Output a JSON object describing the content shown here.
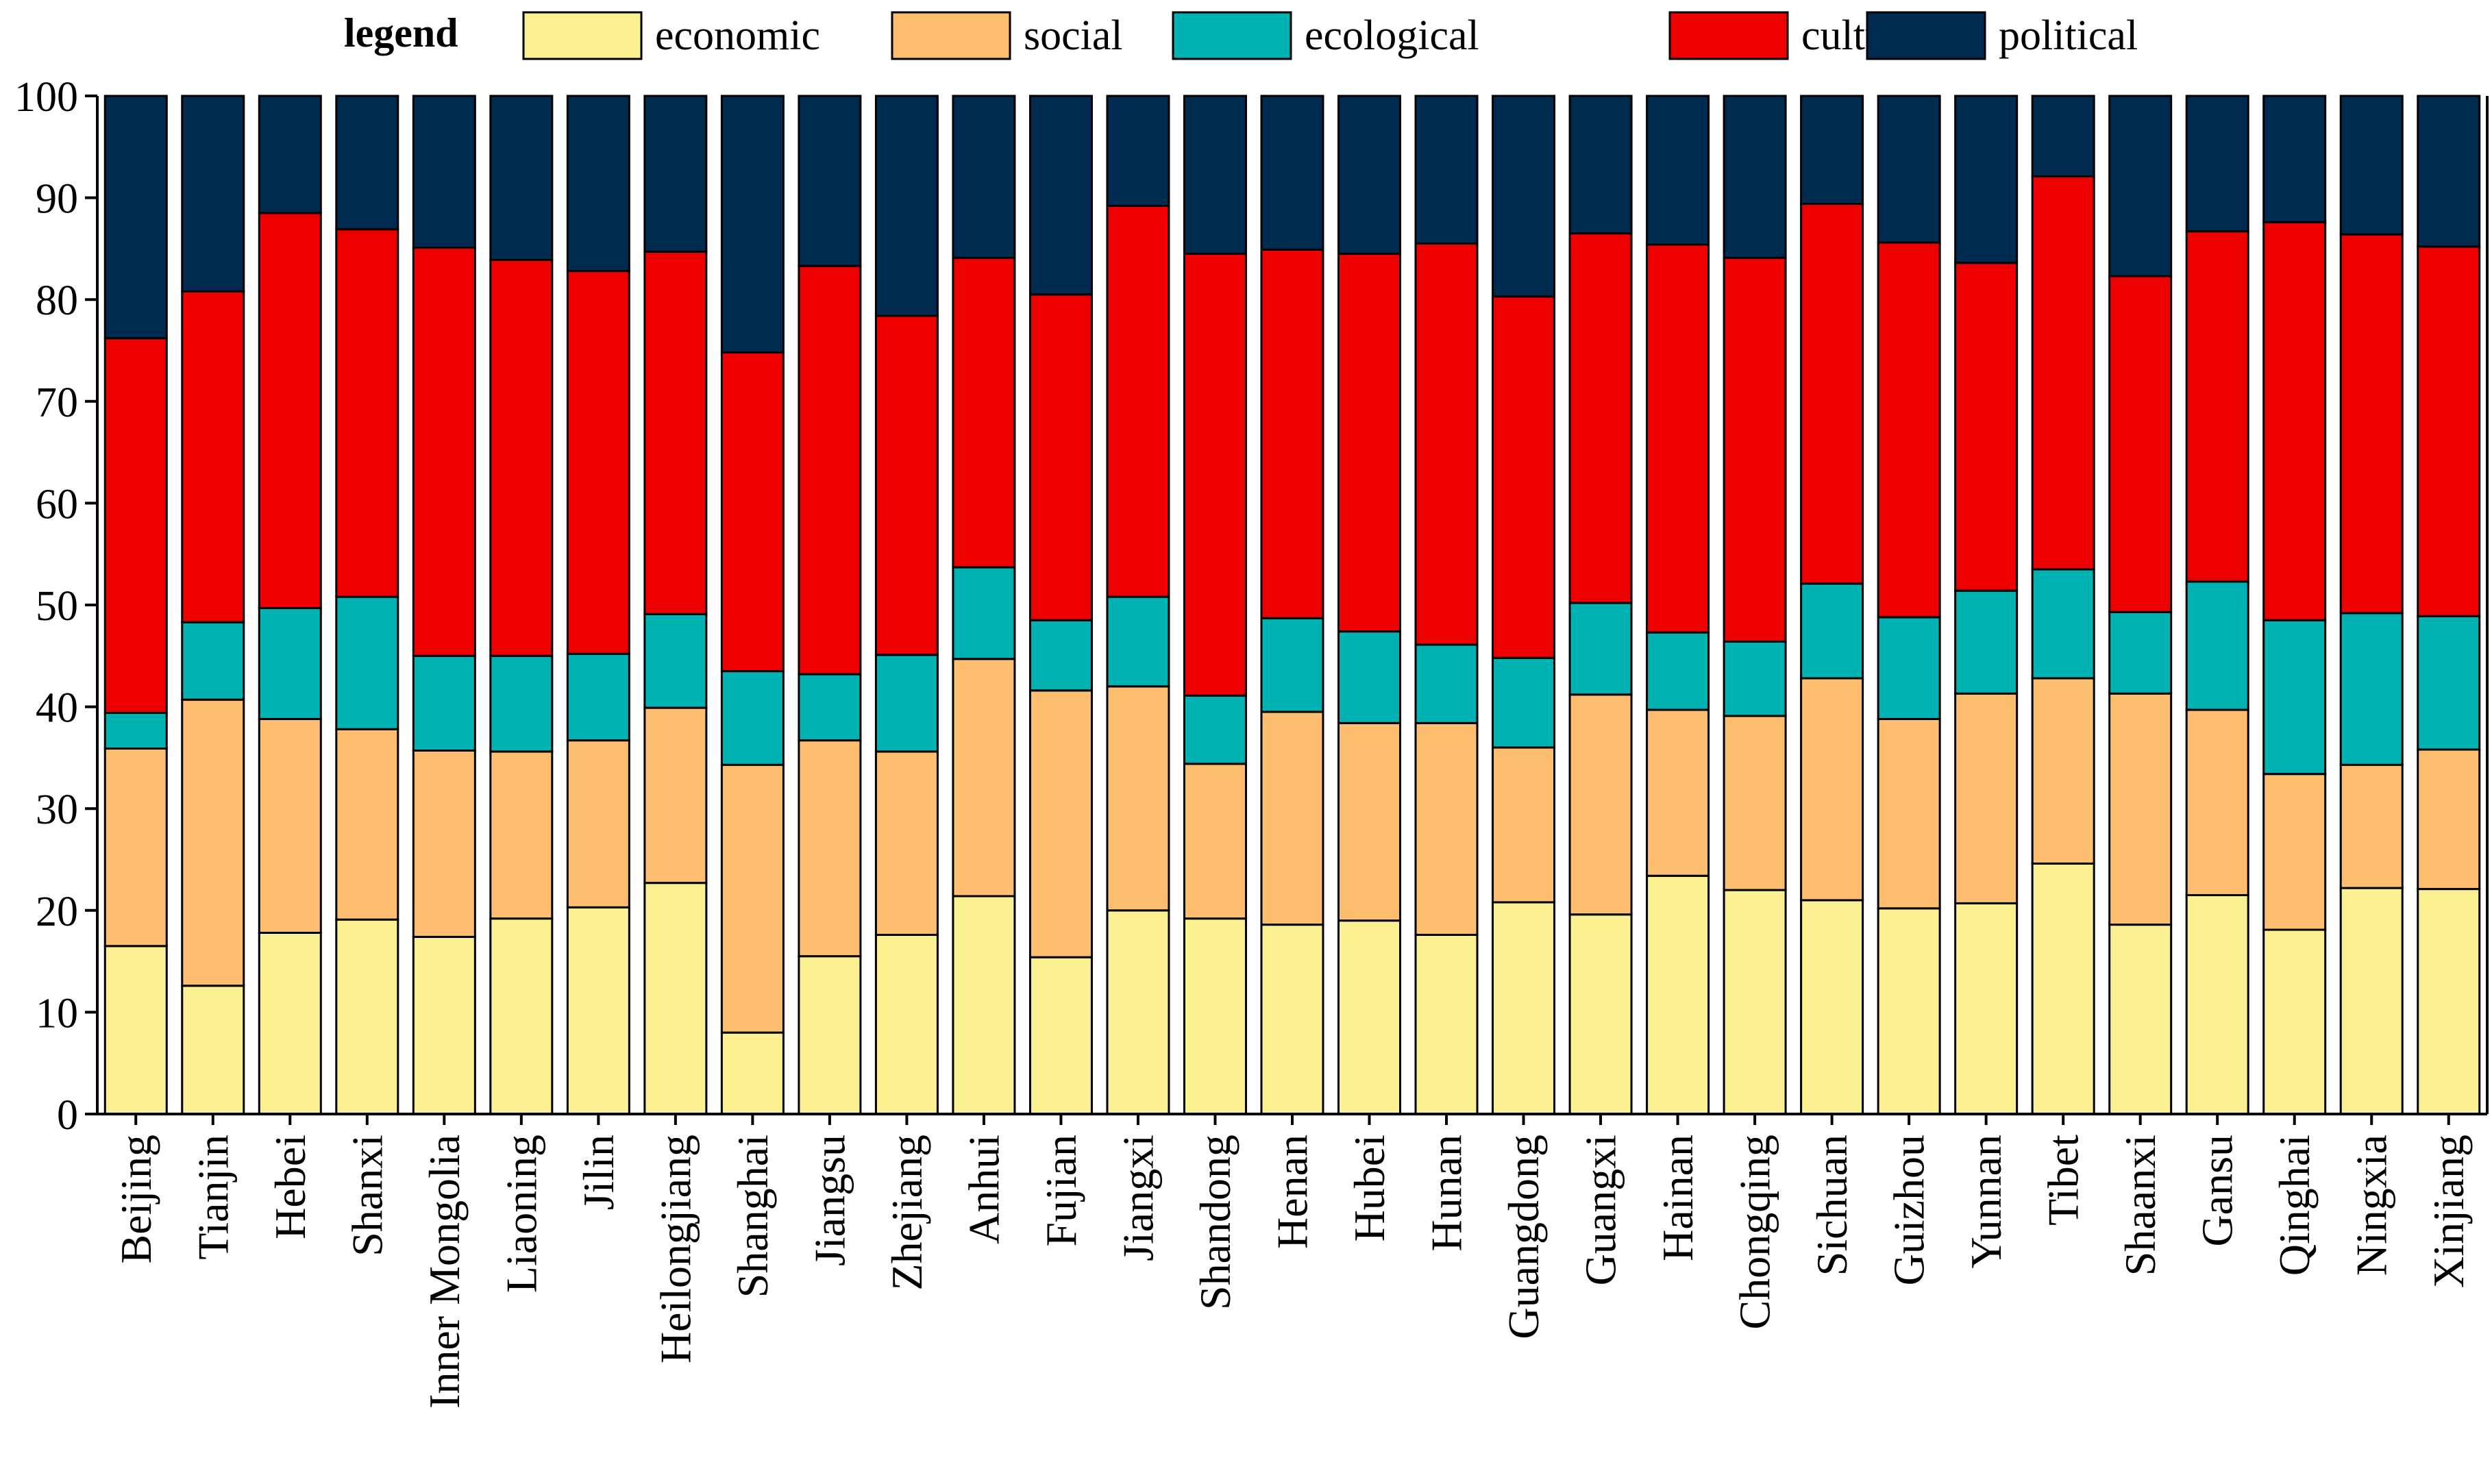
{
  "chart_data": {
    "type": "bar",
    "stacked": true,
    "title": "",
    "xlabel": "",
    "ylabel": "",
    "ylim": [
      0,
      100
    ],
    "yticks": [
      0,
      10,
      20,
      30,
      40,
      50,
      60,
      70,
      80,
      90,
      100
    ],
    "legend_title": "legend",
    "legend_position": "top",
    "categories": [
      "Beijing",
      "Tianjin",
      "Hebei",
      "Shanxi",
      "Inner Mongolia",
      "Liaoning",
      "Jilin",
      "Heilongjiang",
      "Shanghai",
      "Jiangsu",
      "Zhejiang",
      "Anhui",
      "Fujian",
      "Jiangxi",
      "Shandong",
      "Henan",
      "Hubei",
      "Hunan",
      "Guangdong",
      "Guangxi",
      "Hainan",
      "Chongqing",
      "Sichuan",
      "Guizhou",
      "Yunnan",
      "Tibet",
      "Shaanxi",
      "Gansu",
      "Qinghai",
      "Ningxia",
      "Xinjiang"
    ],
    "series": [
      {
        "name": "economic",
        "color": "#FBF193",
        "values": [
          16.5,
          12.6,
          17.8,
          19.1,
          17.4,
          19.2,
          20.3,
          22.7,
          8.0,
          15.5,
          17.6,
          21.4,
          15.4,
          20.0,
          19.2,
          18.6,
          19.0,
          17.6,
          20.8,
          19.6,
          23.4,
          22.0,
          21.0,
          20.2,
          20.7,
          24.6,
          18.6,
          21.5,
          18.1,
          22.2,
          22.1
        ]
      },
      {
        "name": "social",
        "color": "#FDBF6F",
        "values": [
          19.4,
          28.1,
          21.0,
          18.7,
          18.3,
          16.4,
          16.4,
          17.2,
          26.3,
          21.2,
          18.0,
          23.3,
          26.2,
          22.0,
          15.2,
          20.9,
          19.4,
          20.8,
          15.2,
          21.6,
          16.3,
          17.1,
          21.8,
          18.6,
          20.6,
          18.2,
          22.7,
          18.2,
          15.3,
          12.1,
          13.7
        ]
      },
      {
        "name": "ecological",
        "color": "#00B2B2",
        "values": [
          3.5,
          7.6,
          10.9,
          13.0,
          9.3,
          9.4,
          8.5,
          9.2,
          9.2,
          6.5,
          9.5,
          9.0,
          6.9,
          8.8,
          6.7,
          9.2,
          9.0,
          7.7,
          8.8,
          9.0,
          7.6,
          7.3,
          9.3,
          10.0,
          10.1,
          10.7,
          8.0,
          12.6,
          15.1,
          14.9,
          13.1
        ]
      },
      {
        "name": "cultural",
        "color": "#EE0000",
        "values": [
          36.8,
          32.5,
          38.8,
          36.1,
          40.1,
          38.9,
          37.6,
          35.6,
          31.3,
          40.1,
          33.3,
          30.4,
          32.0,
          38.4,
          43.4,
          36.2,
          37.1,
          39.4,
          35.5,
          36.3,
          38.1,
          37.7,
          37.3,
          36.8,
          32.2,
          38.6,
          33.0,
          34.4,
          39.1,
          37.2,
          36.3
        ]
      },
      {
        "name": "political",
        "color": "#002B50",
        "values": [
          23.8,
          19.2,
          11.5,
          13.1,
          14.9,
          16.1,
          17.2,
          15.3,
          25.2,
          16.7,
          21.6,
          15.9,
          19.5,
          10.8,
          15.5,
          15.1,
          15.5,
          14.5,
          19.7,
          13.5,
          14.6,
          15.9,
          10.6,
          14.4,
          16.4,
          7.9,
          17.7,
          13.3,
          12.4,
          13.6,
          14.8
        ]
      }
    ]
  }
}
